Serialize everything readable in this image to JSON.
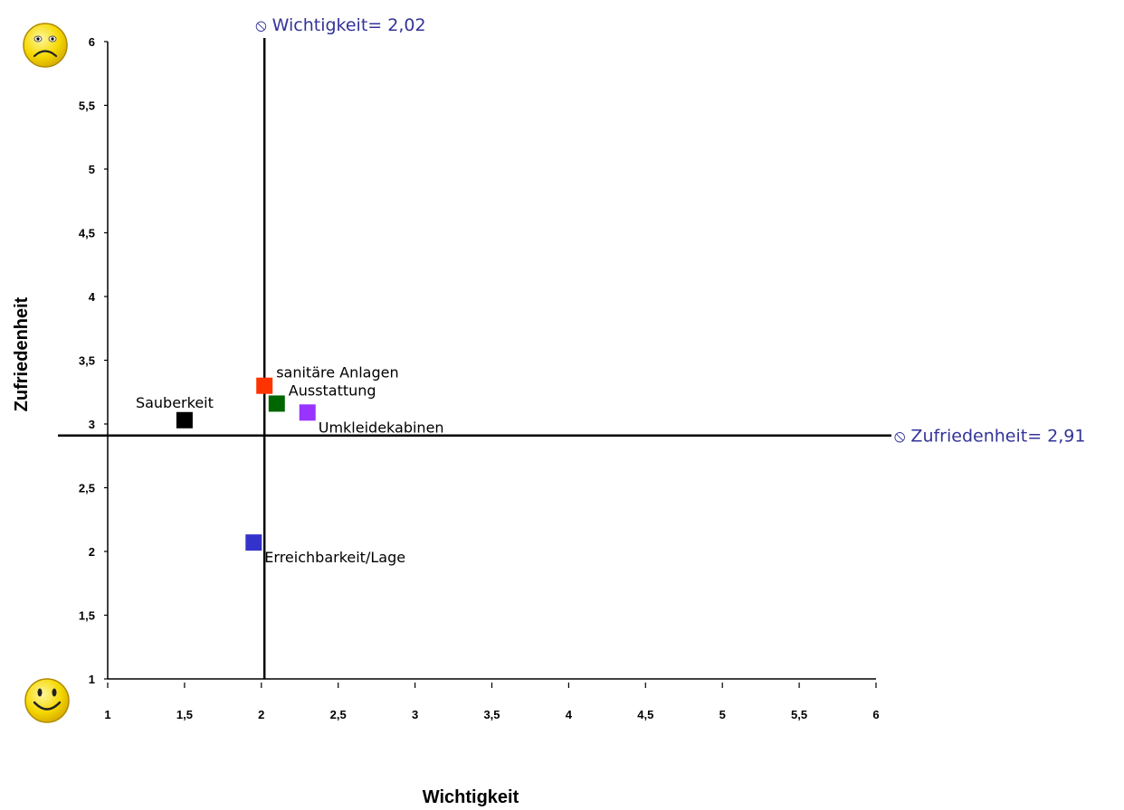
{
  "chart_data": {
    "type": "scatter",
    "title": "",
    "xlabel": "Wichtigkeit",
    "ylabel": "Zufriedenheit",
    "xlim": [
      1,
      6
    ],
    "ylim": [
      1,
      6
    ],
    "x_ticks": [
      "1",
      "1,5",
      "2",
      "2,5",
      "3",
      "3,5",
      "4",
      "4,5",
      "5",
      "5,5",
      "6"
    ],
    "y_ticks": [
      "1",
      "1,5",
      "2",
      "2,5",
      "3",
      "3,5",
      "4",
      "4,5",
      "5",
      "5,5",
      "6"
    ],
    "grid": false,
    "points": [
      {
        "name": "Sauberkeit",
        "x": 1.5,
        "y": 3.03,
        "color": "#000000",
        "label_pos": "above-left"
      },
      {
        "name": "sanitäre Anlagen",
        "x": 2.02,
        "y": 3.3,
        "color": "#ff3300",
        "label_pos": "above-right"
      },
      {
        "name": "Ausstattung",
        "x": 2.1,
        "y": 3.16,
        "color": "#006600",
        "label_pos": "above-right"
      },
      {
        "name": "Umkleidekabinen",
        "x": 2.3,
        "y": 3.09,
        "color": "#9933ff",
        "label_pos": "below-right"
      },
      {
        "name": "Erreichbarkeit/Lage",
        "x": 1.95,
        "y": 2.07,
        "color": "#3333cc",
        "label_pos": "below-right"
      }
    ],
    "reference_lines": [
      {
        "orientation": "vertical",
        "value": 2.02,
        "label": "⦸ Wichtigkeit= 2,02",
        "color": "#333399"
      },
      {
        "orientation": "horizontal",
        "value": 2.91,
        "label": "⦸ Zufriedenheit= 2,91",
        "color": "#333399"
      }
    ],
    "icons": {
      "top": "sad-face-icon",
      "bottom": "happy-face-icon"
    }
  }
}
